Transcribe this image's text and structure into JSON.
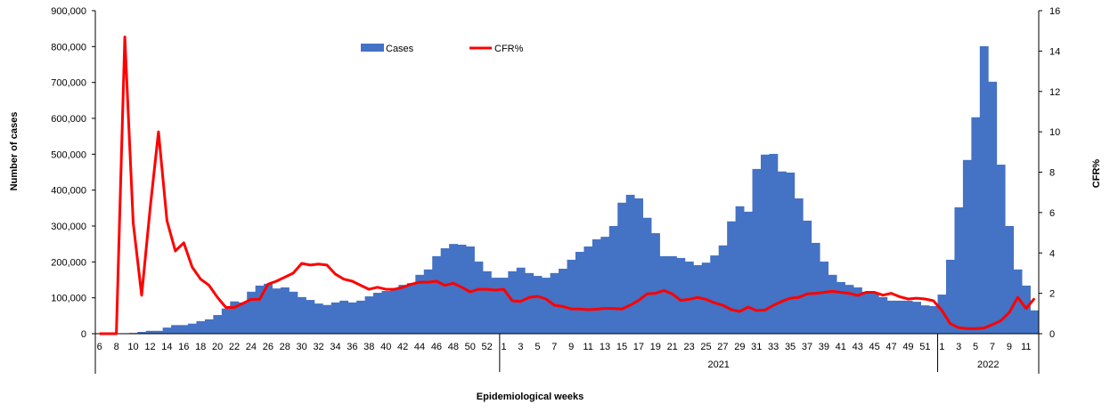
{
  "chart_data": {
    "type": "bar+line",
    "xlabel": "Epidemiological  weeks",
    "ylabel": "Number of cases",
    "y2label": "CFR%",
    "ylim": [
      0,
      900000
    ],
    "y2lim": [
      0,
      16
    ],
    "yticks": [
      "0",
      "100,000",
      "200,000",
      "300,000",
      "400,000",
      "500,000",
      "600,000",
      "700,000",
      "800,000",
      "900,000"
    ],
    "y2ticks": [
      "0",
      "2",
      "4",
      "6",
      "8",
      "10",
      "12",
      "14",
      "16"
    ],
    "legend": {
      "position": "top-center",
      "entries": [
        "Cases",
        "CFR%"
      ]
    },
    "colors": {
      "cases": "#4472C4",
      "cfr": "#FF0000"
    },
    "years": [
      {
        "label": "",
        "weeks": [
          6,
          7,
          8,
          9,
          10,
          11,
          12,
          13,
          14,
          15,
          16,
          17,
          18,
          19,
          20,
          21,
          22,
          23,
          24,
          25,
          26,
          27,
          28,
          29,
          30,
          31,
          32,
          33,
          34,
          35,
          36,
          37,
          38,
          39,
          40,
          41,
          42,
          43,
          44,
          45,
          46,
          47,
          48,
          49,
          50,
          51,
          52,
          53
        ],
        "label_parity": 0
      },
      {
        "label": "2021",
        "weeks": [
          1,
          2,
          3,
          4,
          5,
          6,
          7,
          8,
          9,
          10,
          11,
          12,
          13,
          14,
          15,
          16,
          17,
          18,
          19,
          20,
          21,
          22,
          23,
          24,
          25,
          26,
          27,
          28,
          29,
          30,
          31,
          32,
          33,
          34,
          35,
          36,
          37,
          38,
          39,
          40,
          41,
          42,
          43,
          44,
          45,
          46,
          47,
          48,
          49,
          50,
          51,
          52
        ],
        "label_parity": 1
      },
      {
        "label": "2022",
        "weeks": [
          1,
          2,
          3,
          4,
          5,
          6,
          7,
          8,
          9,
          10,
          11,
          12
        ],
        "label_parity": 1
      }
    ],
    "series": [
      {
        "name": "Cases",
        "type": "bar",
        "values": [
          0,
          0,
          0,
          0,
          2000,
          5000,
          8000,
          8000,
          17000,
          24000,
          24000,
          28000,
          35000,
          40000,
          52000,
          70000,
          90000,
          87000,
          117000,
          134000,
          139000,
          126000,
          129000,
          117000,
          102000,
          94000,
          84000,
          80000,
          87000,
          92000,
          87000,
          92000,
          104000,
          114000,
          119000,
          125000,
          136000,
          141000,
          164000,
          179000,
          216000,
          238000,
          250000,
          248000,
          243000,
          201000,
          174000,
          156000,
          156000,
          174000,
          184000,
          169000,
          161000,
          156000,
          169000,
          181000,
          206000,
          228000,
          243000,
          263000,
          270000,
          300000,
          365000,
          387000,
          377000,
          323000,
          280000,
          216000,
          216000,
          211000,
          201000,
          191000,
          198000,
          218000,
          246000,
          313000,
          355000,
          340000,
          459000,
          499000,
          501000,
          452000,
          449000,
          377000,
          315000,
          253000,
          201000,
          164000,
          144000,
          136000,
          129000,
          117000,
          114000,
          102000,
          92000,
          92000,
          92000,
          89000,
          79000,
          77000,
          109000,
          206000,
          352000,
          484000,
          603000,
          801000,
          702000,
          471000,
          300000,
          179000,
          134000,
          65000
        ]
      },
      {
        "name": "CFR%",
        "type": "line",
        "axis": "right",
        "values": [
          0,
          0,
          0,
          14.7,
          5.5,
          1.9,
          6.2,
          10,
          5.6,
          4.1,
          4.5,
          3.3,
          2.7,
          2.4,
          1.8,
          1.3,
          1.3,
          1.5,
          1.7,
          1.7,
          2.45,
          2.6,
          2.8,
          3.0,
          3.48,
          3.4,
          3.45,
          3.4,
          2.95,
          2.7,
          2.6,
          2.4,
          2.2,
          2.3,
          2.2,
          2.2,
          2.3,
          2.45,
          2.55,
          2.55,
          2.6,
          2.4,
          2.5,
          2.3,
          2.07,
          2.2,
          2.2,
          2.16,
          2.2,
          1.63,
          1.6,
          1.8,
          1.85,
          1.72,
          1.41,
          1.35,
          1.23,
          1.22,
          1.19,
          1.21,
          1.25,
          1.25,
          1.22,
          1.41,
          1.65,
          1.97,
          2.0,
          2.14,
          1.97,
          1.65,
          1.7,
          1.8,
          1.7,
          1.53,
          1.41,
          1.19,
          1.1,
          1.32,
          1.15,
          1.17,
          1.41,
          1.6,
          1.76,
          1.8,
          1.97,
          2.0,
          2.05,
          2.1,
          2.05,
          2.0,
          1.89,
          2.05,
          2.05,
          1.91,
          2.0,
          1.83,
          1.72,
          1.76,
          1.72,
          1.63,
          1.15,
          0.5,
          0.3,
          0.25,
          0.25,
          0.28,
          0.45,
          0.65,
          1.05,
          1.8,
          1.25,
          1.75
        ]
      }
    ]
  }
}
